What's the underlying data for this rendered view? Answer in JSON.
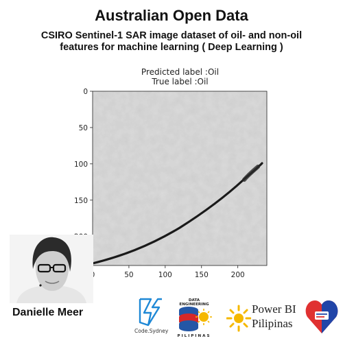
{
  "header": {
    "title": "Australian Open Data",
    "subtitle": "CSIRO Sentinel-1 SAR image dataset of oil- and non-oil features for machine learning ( Deep Learning )"
  },
  "plot": {
    "predicted_label": "Predicted label :Oil",
    "true_label": "True label :Oil",
    "x_ticks": [
      "0",
      "50",
      "100",
      "150",
      "200"
    ],
    "y_ticks": [
      "0",
      "50",
      "100",
      "150",
      "200"
    ]
  },
  "presenter": {
    "name": "Danielle Meer"
  },
  "logos": {
    "codesydney": "Code.Sydney",
    "data_engineering_top": "DATA ENGINEERING",
    "data_engineering_bottom": "PILIPINAS",
    "power_bi_line1": "Power BI",
    "power_bi_line2": "Pilipinas"
  },
  "colors": {
    "codesydney_blue": "#1e88d6",
    "pbi_yellow": "#f5b800",
    "de_red": "#d62828",
    "de_blue": "#2457a6",
    "heart_red": "#e03131",
    "heart_blue": "#2145a8"
  }
}
